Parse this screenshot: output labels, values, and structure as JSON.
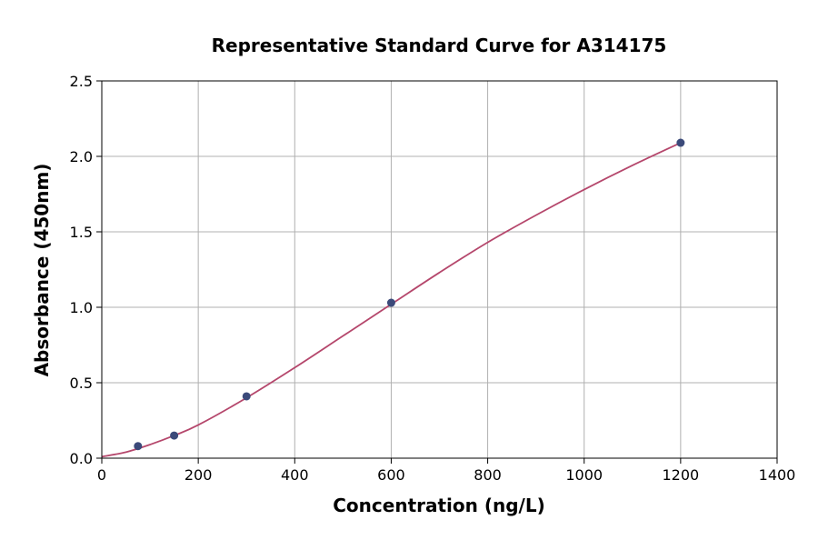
{
  "chart_data": {
    "type": "scatter",
    "title": "Representative Standard Curve for A314175",
    "xlabel": "Concentration (ng/L)",
    "ylabel": "Absorbance (450nm)",
    "xlim": [
      0,
      1400
    ],
    "ylim": [
      0,
      2.5
    ],
    "xticks": [
      0,
      200,
      400,
      600,
      800,
      1000,
      1200,
      1400
    ],
    "yticks": [
      0.0,
      0.5,
      1.0,
      1.5,
      2.0,
      2.5
    ],
    "xtick_labels": [
      "0",
      "200",
      "400",
      "600",
      "800",
      "1000",
      "1200",
      "1400"
    ],
    "ytick_labels": [
      "0.0",
      "0.5",
      "1.0",
      "1.5",
      "2.0",
      "2.5"
    ],
    "grid": true,
    "points": {
      "x": [
        75,
        150,
        300,
        600,
        1200
      ],
      "y": [
        0.08,
        0.15,
        0.41,
        1.03,
        2.09
      ]
    },
    "curve": {
      "x": [
        0,
        50,
        100,
        150,
        200,
        300,
        400,
        500,
        600,
        700,
        800,
        900,
        1000,
        1100,
        1200
      ],
      "y": [
        0.01,
        0.04,
        0.09,
        0.15,
        0.22,
        0.4,
        0.6,
        0.81,
        1.02,
        1.23,
        1.43,
        1.61,
        1.78,
        1.94,
        2.09
      ]
    },
    "colors": {
      "points": "#3b4a7a",
      "curve": "#b5476c"
    }
  }
}
